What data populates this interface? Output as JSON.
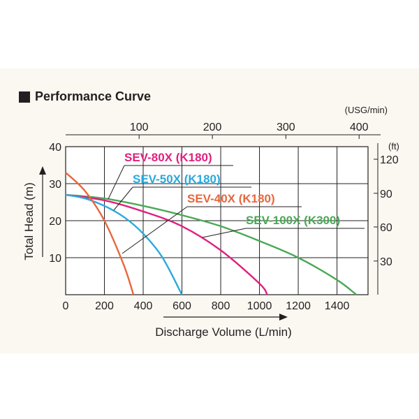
{
  "page_title": "Performance Curve",
  "chart_data": {
    "type": "line",
    "title": "Performance Curve",
    "xlabel": "Discharge Volume (L/min)",
    "ylabel": "Total Head (m)",
    "xlim": [
      0,
      1560
    ],
    "ylim": [
      0,
      40
    ],
    "x_ticks": [
      "0",
      "200",
      "400",
      "600",
      "800",
      "1000",
      "1200",
      "1400"
    ],
    "y_ticks": [
      "10",
      "20",
      "30",
      "40"
    ],
    "secondary_x": {
      "unit": "(USG/min)",
      "ticks": [
        {
          "label": "100",
          "value_lpm": 379
        },
        {
          "label": "200",
          "value_lpm": 757
        },
        {
          "label": "300",
          "value_lpm": 1136
        },
        {
          "label": "400",
          "value_lpm": 1514
        }
      ]
    },
    "secondary_y": {
      "unit": "(ft)",
      "ticks": [
        {
          "label": "30",
          "value_m": 9.1
        },
        {
          "label": "60",
          "value_m": 18.3
        },
        {
          "label": "90",
          "value_m": 27.4
        },
        {
          "label": "120",
          "value_m": 36.6
        }
      ]
    },
    "series": [
      {
        "name": "SEV-40X (K180)",
        "color": "#e8663d",
        "x": [
          0,
          100,
          200,
          300,
          350
        ],
        "y": [
          33,
          28,
          20,
          8,
          0
        ]
      },
      {
        "name": "SEV-50X (K180)",
        "color": "#2ba9dc",
        "x": [
          0,
          100,
          200,
          300,
          400,
          500,
          600
        ],
        "y": [
          27,
          26,
          24,
          21,
          16.5,
          10,
          0
        ]
      },
      {
        "name": "SEV-80X (K180)",
        "color": "#e0207f",
        "x": [
          0,
          200,
          400,
          600,
          800,
          1000,
          1040
        ],
        "y": [
          27,
          25.5,
          22.5,
          18.5,
          12,
          3,
          0
        ]
      },
      {
        "name": "SEV-100X (K300)",
        "color": "#4aa957",
        "x": [
          0,
          200,
          400,
          600,
          800,
          1000,
          1200,
          1400,
          1500
        ],
        "y": [
          27,
          26,
          24,
          21.5,
          18.5,
          14.5,
          10,
          4,
          0
        ]
      }
    ]
  }
}
